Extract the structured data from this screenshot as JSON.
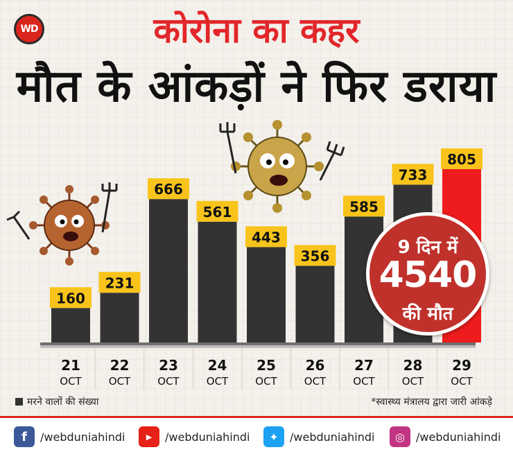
{
  "header": {
    "logo_text": "WD",
    "title": "कोरोना का कहर",
    "subtitle": "मौत के आंकड़ों ने फिर डराया"
  },
  "chart_data": {
    "type": "bar",
    "categories": [
      {
        "day": "21",
        "month": "OCT"
      },
      {
        "day": "22",
        "month": "OCT"
      },
      {
        "day": "23",
        "month": "OCT"
      },
      {
        "day": "24",
        "month": "OCT"
      },
      {
        "day": "25",
        "month": "OCT"
      },
      {
        "day": "26",
        "month": "OCT"
      },
      {
        "day": "27",
        "month": "OCT"
      },
      {
        "day": "28",
        "month": "OCT"
      },
      {
        "day": "29",
        "month": "OCT"
      }
    ],
    "values": [
      160,
      231,
      666,
      561,
      443,
      356,
      585,
      733,
      805
    ],
    "highlight_index": 8,
    "colors": {
      "bar": "#333333",
      "highlight": "#ee1c1c",
      "label_bg": "#f8c41b"
    },
    "legend": "मरने वालों की संख्या",
    "ylim": [
      0,
      805
    ]
  },
  "badge": {
    "line1": "9 दिन में",
    "number": "4540",
    "line3": "की मौत"
  },
  "source_note": "*स्वास्थ्य मंत्रालय द्वारा जारी आंकड़े",
  "footer": {
    "facebook": {
      "icon": "facebook-icon",
      "handle": "/webduniahindi",
      "color": "#3b5998"
    },
    "youtube": {
      "icon": "youtube-icon",
      "handle": "/webduniahindi",
      "color": "#e62117"
    },
    "twitter": {
      "icon": "twitter-icon",
      "handle": "/webduniahindi",
      "color": "#1da1f2"
    },
    "instagram": {
      "icon": "instagram-icon",
      "handle": "/webduniahindi",
      "color": "#c13584"
    }
  }
}
